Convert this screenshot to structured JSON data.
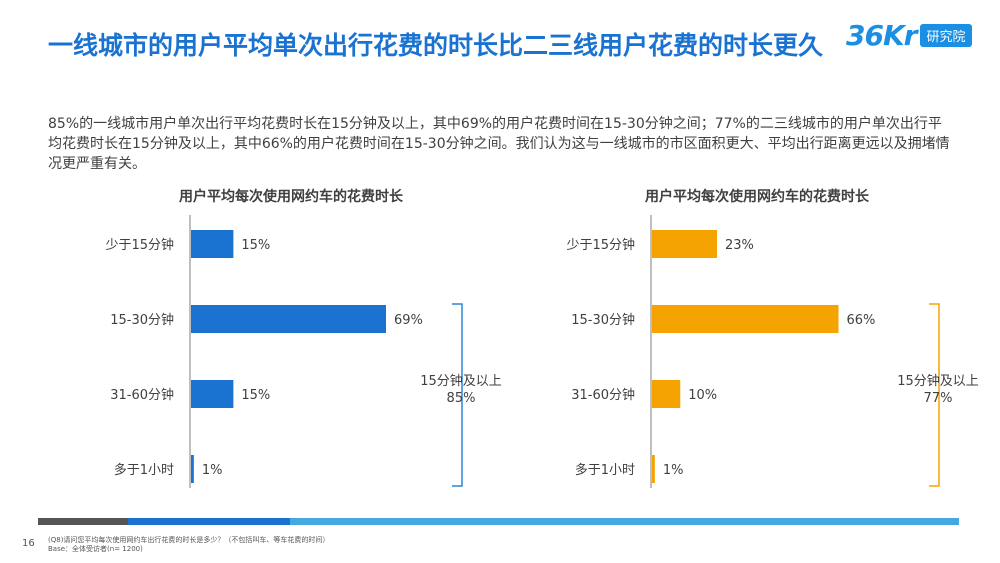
{
  "header": {
    "title": "一线城市的用户平均单次出行花费的时长比二三线用户花费的时长更久",
    "logo_mark": "36Kr",
    "logo_badge": "研究院"
  },
  "description": "85%的一线城市用户单次出行平均花费时长在15分钟及以上，其中69%的用户花费时间在15-30分钟之间；77%的二三线城市的用户单次出行平均花费时长在15分钟及以上，其中66%的用户花费时间在15-30分钟之间。我们认为这与一线城市的市区面积更大、平均出行距离更远以及拥堵情况更严重有关。",
  "colors": {
    "title": "#1a73d1",
    "left_bar": "#1a73d1",
    "right_bar": "#f5a300",
    "left_bracket": "#2f86d6",
    "right_bracket": "#f5a300",
    "axis": "#bfbfbf"
  },
  "chart_data": [
    {
      "type": "bar",
      "orientation": "horizontal",
      "title": "用户平均每次使用网约车的花费时长",
      "categories": [
        "少于15分钟",
        "15-30分钟",
        "31-60分钟",
        "多于1小时"
      ],
      "values": [
        15,
        69,
        15,
        1
      ],
      "value_labels": [
        "15%",
        "69%",
        "15%",
        "1%"
      ],
      "bracket": {
        "line1": "15分钟及以上",
        "line2": "85%"
      }
    },
    {
      "type": "bar",
      "orientation": "horizontal",
      "title": "用户平均每次使用网约车的花费时长",
      "categories": [
        "少于15分钟",
        "15-30分钟",
        "31-60分钟",
        "多于1小时"
      ],
      "values": [
        23,
        66,
        10,
        1
      ],
      "value_labels": [
        "23%",
        "66%",
        "10%",
        "1%"
      ],
      "bracket": {
        "line1": "15分钟及以上",
        "line2": "77%"
      }
    }
  ],
  "footer": {
    "page_number": "16",
    "question": "(Q8)请问您平均每次使用网约车出行花费的时长是多少？（不包括叫车、等车花费的时间）",
    "base": "Base：全体受访者(n= 1200)"
  }
}
